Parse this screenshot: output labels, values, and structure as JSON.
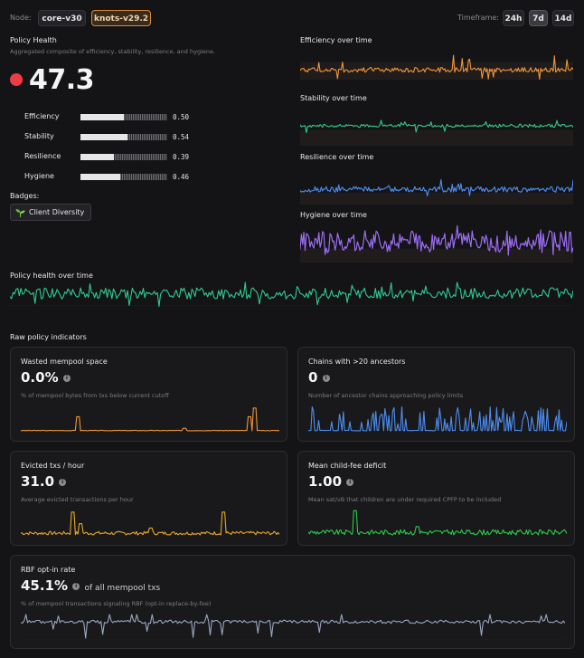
{
  "node": {
    "label": "Node:",
    "options": [
      "core-v30",
      "knots-v29.2"
    ],
    "selected": "knots-v29.2"
  },
  "timeframe": {
    "label": "Timeframe:",
    "options": [
      "24h",
      "7d",
      "14d"
    ],
    "selected": "7d"
  },
  "health": {
    "title": "Policy Health",
    "subtitle": "Aggregated composite of efficiency, stability, resilience, and hygiene.",
    "score": "47.3",
    "status_color": "#ef3b45",
    "components": [
      {
        "name": "Efficiency",
        "value": "0.50",
        "fraction": 0.5
      },
      {
        "name": "Stability",
        "value": "0.54",
        "fraction": 0.54
      },
      {
        "name": "Resilience",
        "value": "0.39",
        "fraction": 0.39
      },
      {
        "name": "Hygiene",
        "value": "0.46",
        "fraction": 0.46
      }
    ],
    "badges_label": "Badges:",
    "badges": [
      {
        "icon": "sprout-icon",
        "label": "Client Diversity"
      }
    ]
  },
  "mini_charts": [
    {
      "title": "Efficiency over time",
      "color": "#f0953a"
    },
    {
      "title": "Stability over time",
      "color": "#34c98a"
    },
    {
      "title": "Resilience over time",
      "color": "#4f8ef0"
    },
    {
      "title": "Hygiene over time",
      "color": "#9b6cf0"
    }
  ],
  "overall_chart": {
    "title": "Policy health over time",
    "color": "#30c990"
  },
  "raw": {
    "title": "Raw policy indicators",
    "cards": [
      {
        "title": "Wasted mempool space",
        "value": "0.0%",
        "desc": "% of mempool bytes from txs below current cutoff",
        "color": "#f0953a"
      },
      {
        "title": "Chains with >20 ancestors",
        "value": "0",
        "desc": "Number of ancestor chains approaching policy limits",
        "color": "#4f8ef0"
      },
      {
        "title": "Evicted txs / hour",
        "value": "31.0",
        "desc": "Average evicted transactions per hour",
        "color": "#e8a825"
      },
      {
        "title": "Mean child-fee deficit",
        "value": "1.00",
        "desc": "Mean sat/vB that children are under required CPFP to be included",
        "color": "#2cc94a"
      },
      {
        "title": "RBF opt-in rate",
        "value": "45.1%",
        "suffix": "of all mempool txs",
        "desc": "% of mempool transactions signaling RBF (opt-in replace-by-fee)",
        "color": "#9aa6bd"
      }
    ]
  }
}
